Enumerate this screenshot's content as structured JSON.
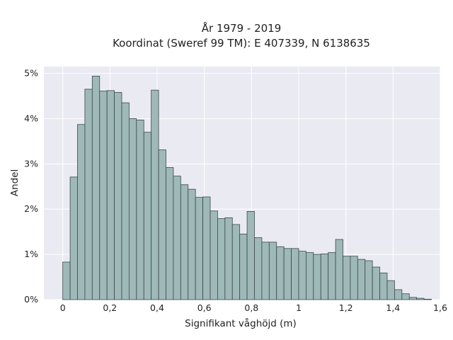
{
  "chart_data": {
    "type": "bar",
    "title_lines": [
      "År 1979 - 2019",
      "Koordinat (Sweref 99 TM): E 407339, N 6138635"
    ],
    "xlabel": "Signifikant våghöjd (m)",
    "ylabel": "Andel",
    "xlim": [
      -0.08,
      1.6
    ],
    "ylim": [
      0,
      5.15
    ],
    "x_ticks": [
      {
        "value": 0,
        "label": "0"
      },
      {
        "value": 0.2,
        "label": "0,2"
      },
      {
        "value": 0.4,
        "label": "0,4"
      },
      {
        "value": 0.6,
        "label": "0,6"
      },
      {
        "value": 0.8,
        "label": "0,8"
      },
      {
        "value": 1.0,
        "label": "1"
      },
      {
        "value": 1.2,
        "label": "1,2"
      },
      {
        "value": 1.4,
        "label": "1,4"
      },
      {
        "value": 1.6,
        "label": "1,6"
      }
    ],
    "y_ticks": [
      {
        "value": 0,
        "label": "0%"
      },
      {
        "value": 1,
        "label": "1%"
      },
      {
        "value": 2,
        "label": "2%"
      },
      {
        "value": 3,
        "label": "3%"
      },
      {
        "value": 4,
        "label": "4%"
      },
      {
        "value": 5,
        "label": "5%"
      }
    ],
    "grid": true,
    "bin_start": 0,
    "bin_width": 0.03125,
    "values": [
      0.83,
      2.71,
      3.87,
      4.65,
      4.94,
      4.61,
      4.62,
      4.58,
      4.35,
      4.0,
      3.97,
      3.7,
      4.63,
      3.31,
      2.92,
      2.73,
      2.54,
      2.44,
      2.26,
      2.27,
      1.96,
      1.79,
      1.81,
      1.66,
      1.45,
      1.95,
      1.37,
      1.27,
      1.27,
      1.17,
      1.13,
      1.13,
      1.07,
      1.04,
      1.0,
      1.01,
      1.04,
      1.33,
      0.96,
      0.96,
      0.89,
      0.86,
      0.72,
      0.59,
      0.42,
      0.22,
      0.13,
      0.05,
      0.03,
      0.01
    ]
  },
  "colors": {
    "plot_background": "#eaeaf2",
    "grid": "#ffffff",
    "bar_fill": "#9fb8b8",
    "bar_edge": "#3c4a4a"
  }
}
